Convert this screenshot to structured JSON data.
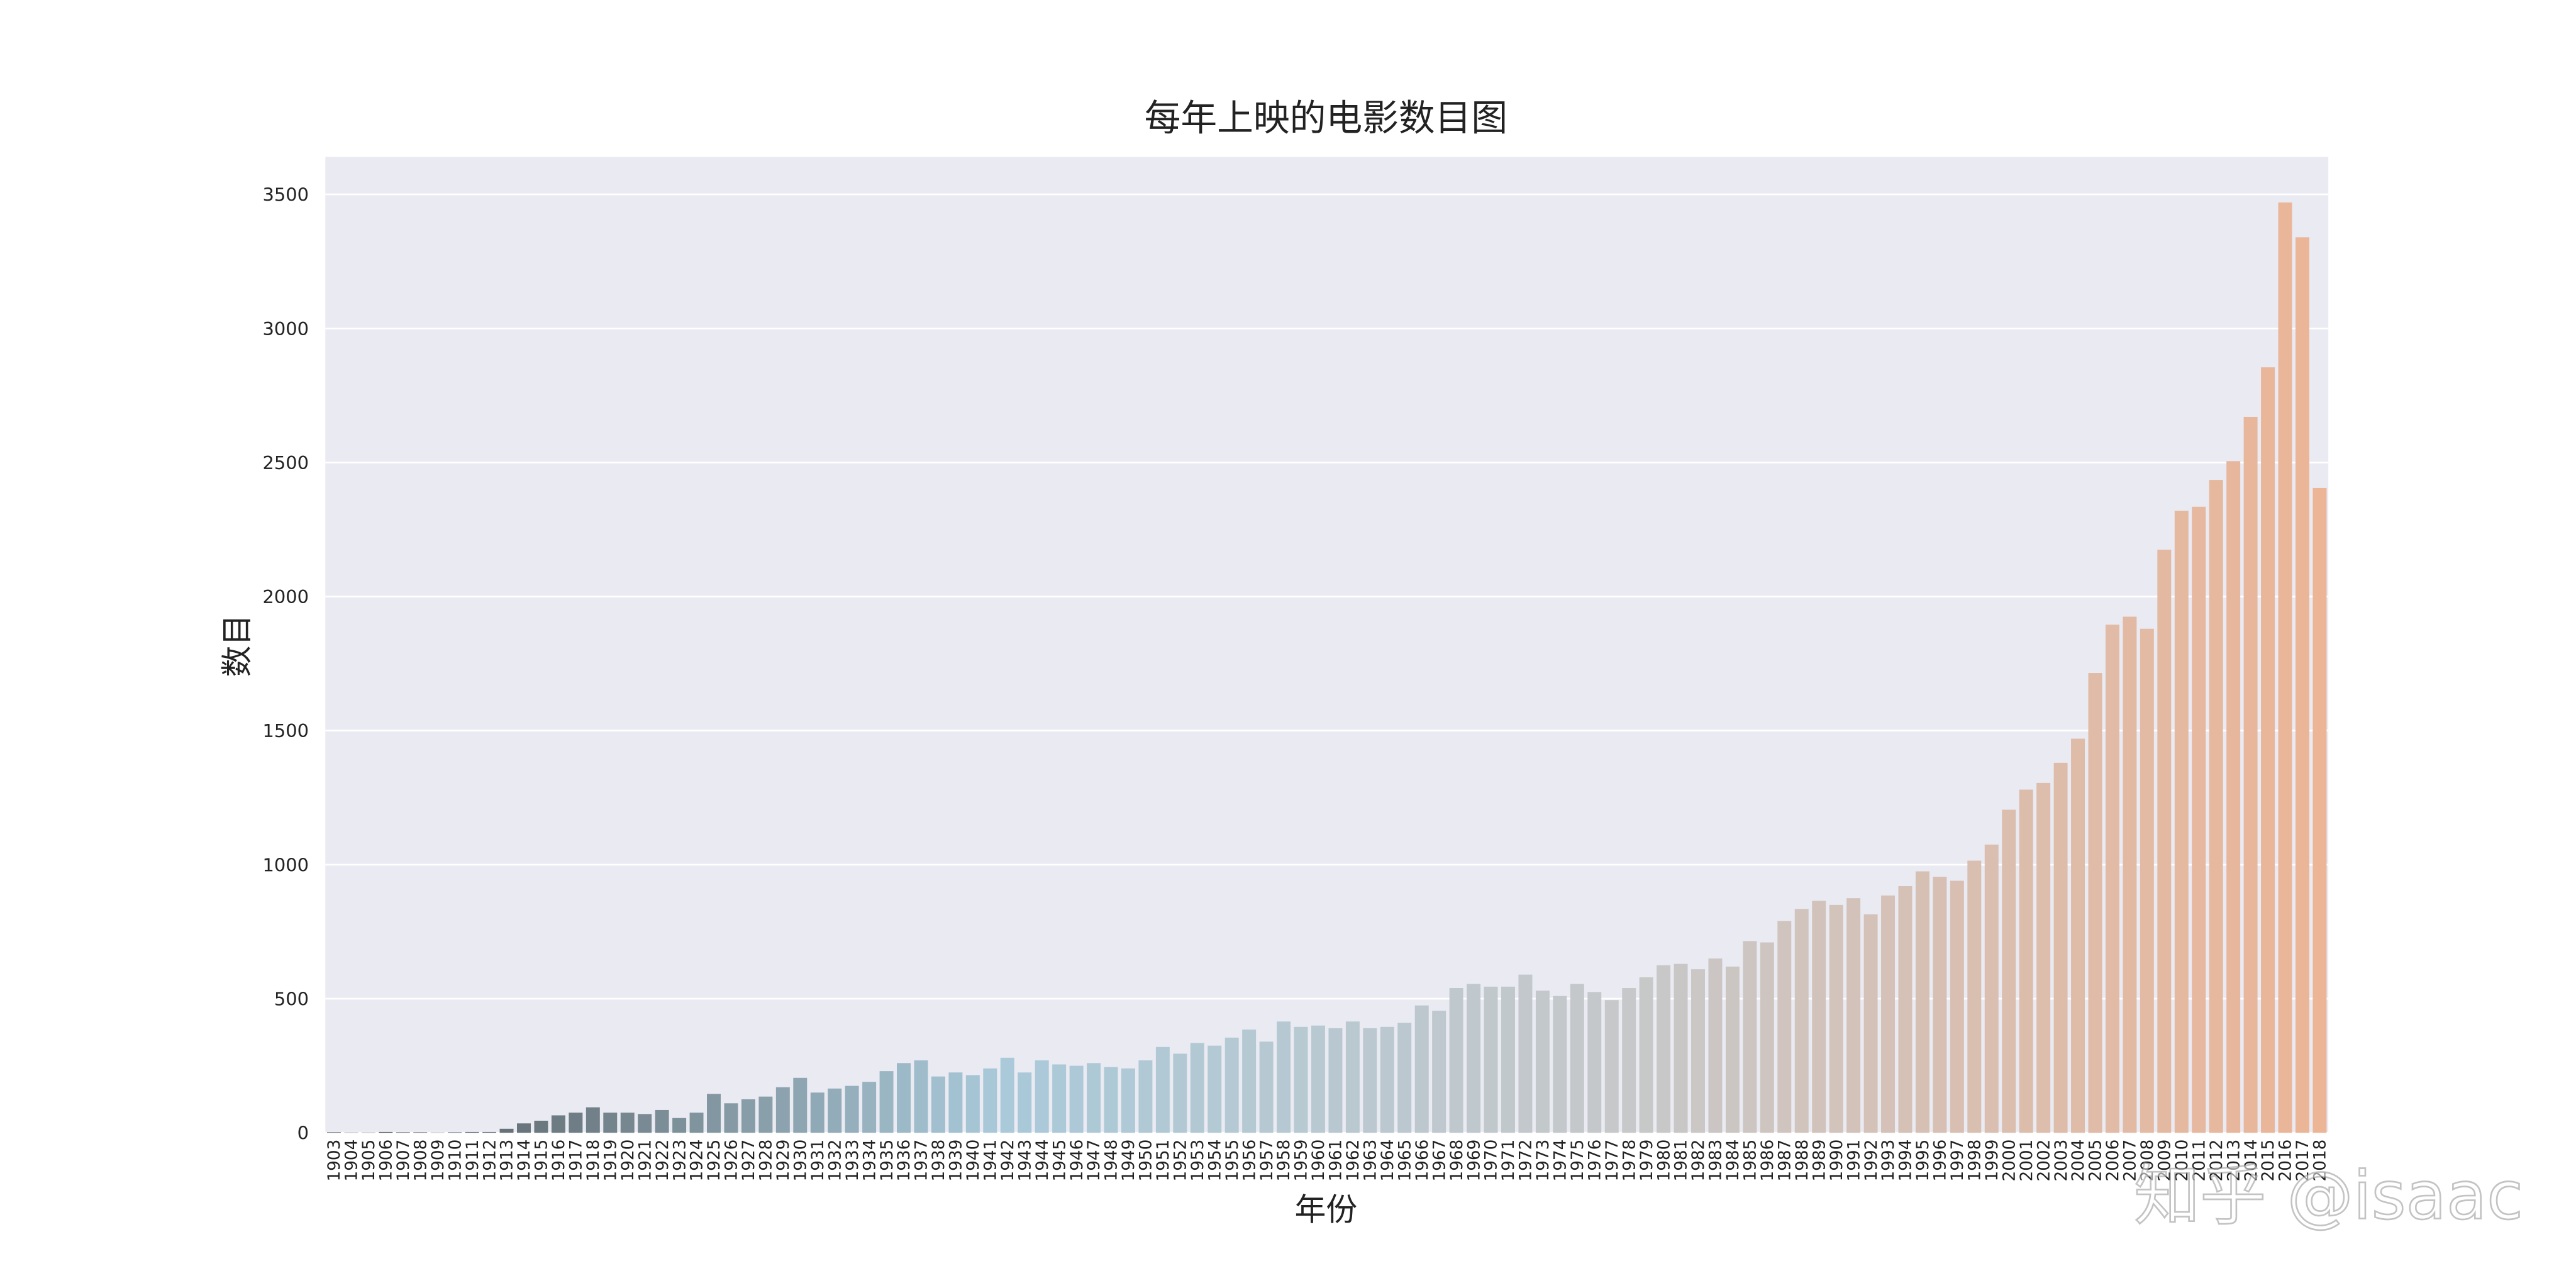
{
  "chart_data": {
    "type": "bar",
    "title": "每年上映的电影数目图",
    "x_label": "年份",
    "y_label": "数目",
    "watermark": "知乎 @isaac",
    "categories": [
      "1903",
      "1904",
      "1905",
      "1906",
      "1907",
      "1908",
      "1909",
      "1910",
      "1911",
      "1912",
      "1913",
      "1914",
      "1915",
      "1916",
      "1917",
      "1918",
      "1919",
      "1920",
      "1921",
      "1922",
      "1923",
      "1924",
      "1925",
      "1926",
      "1927",
      "1928",
      "1929",
      "1930",
      "1931",
      "1932",
      "1933",
      "1934",
      "1935",
      "1936",
      "1937",
      "1938",
      "1939",
      "1940",
      "1941",
      "1942",
      "1943",
      "1944",
      "1945",
      "1946",
      "1947",
      "1948",
      "1949",
      "1950",
      "1951",
      "1952",
      "1953",
      "1954",
      "1955",
      "1956",
      "1957",
      "1958",
      "1959",
      "1960",
      "1961",
      "1962",
      "1963",
      "1964",
      "1965",
      "1966",
      "1967",
      "1968",
      "1969",
      "1970",
      "1971",
      "1972",
      "1973",
      "1974",
      "1975",
      "1976",
      "1977",
      "1978",
      "1979",
      "1980",
      "1981",
      "1982",
      "1983",
      "1984",
      "1985",
      "1986",
      "1987",
      "1988",
      "1989",
      "1990",
      "1991",
      "1992",
      "1993",
      "1994",
      "1995",
      "1996",
      "1997",
      "1998",
      "1999",
      "2000",
      "2001",
      "2002",
      "2003",
      "2004",
      "2005",
      "2006",
      "2007",
      "2008",
      "2009",
      "2010",
      "2011",
      "2012",
      "2013",
      "2014",
      "2015",
      "2016",
      "2017",
      "2018"
    ],
    "values": [
      2,
      1,
      1,
      3,
      2,
      2,
      1,
      2,
      3,
      3,
      15,
      35,
      45,
      65,
      75,
      95,
      75,
      75,
      70,
      85,
      55,
      75,
      145,
      110,
      125,
      135,
      170,
      205,
      150,
      165,
      175,
      190,
      230,
      260,
      270,
      210,
      225,
      215,
      240,
      280,
      225,
      270,
      255,
      250,
      260,
      245,
      240,
      270,
      320,
      295,
      335,
      325,
      355,
      385,
      340,
      415,
      395,
      400,
      390,
      415,
      390,
      395,
      410,
      475,
      455,
      540,
      555,
      545,
      545,
      590,
      530,
      510,
      555,
      525,
      495,
      540,
      580,
      625,
      630,
      610,
      650,
      620,
      715,
      710,
      790,
      835,
      865,
      850,
      875,
      815,
      885,
      920,
      975,
      955,
      940,
      1015,
      1075,
      1205,
      1280,
      1305,
      1380,
      1470,
      1715,
      1895,
      1925,
      1880,
      2175,
      2320,
      2335,
      2435,
      2505,
      2670,
      2855,
      3470,
      3340,
      2405
    ],
    "palette": [
      "#4e5356",
      "#a9c9d9",
      "#c8c8c8",
      "#ecb596"
    ],
    "ylim": [
      0,
      3640
    ],
    "yticks": [
      0,
      500,
      1000,
      1500,
      2000,
      2500,
      3000,
      3500
    ],
    "grid": true
  }
}
